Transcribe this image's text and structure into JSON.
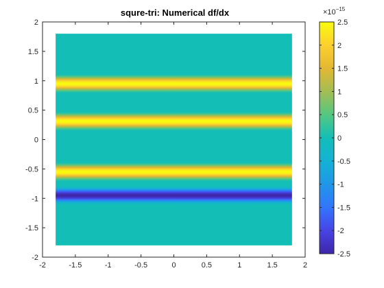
{
  "chart_data": {
    "type": "heatmap",
    "title": "squre-tri: Numerical df/dx",
    "xlabel": "",
    "ylabel": "",
    "xlim": [
      -2,
      2
    ],
    "ylim": [
      -2,
      2
    ],
    "x_ticks": [
      "-2",
      "-1.5",
      "-1",
      "-0.5",
      "0",
      "0.5",
      "1",
      "1.5",
      "2"
    ],
    "y_ticks": [
      "2",
      "1.5",
      "1",
      "0.5",
      "0",
      "-0.5",
      "-1",
      "-1.5",
      "-2"
    ],
    "data_extent": {
      "x": [
        -1.8,
        1.8
      ],
      "y": [
        -1.8,
        1.8
      ]
    },
    "background_value": 0,
    "bands": [
      {
        "y_center": 0.95,
        "halfwidth": 0.17,
        "peak": 2.5e-15
      },
      {
        "y_center": 0.31,
        "halfwidth": 0.17,
        "peak": 2.5e-15
      },
      {
        "y_center": -0.55,
        "halfwidth": 0.17,
        "peak": 2.5e-15
      },
      {
        "y_center": -0.95,
        "halfwidth": 0.17,
        "peak": -2.5e-15
      }
    ],
    "colorbar": {
      "clim": [
        -2.5e-15,
        2.5e-15
      ],
      "ticks": [
        "2.5",
        "2",
        "1.5",
        "1",
        "0.5",
        "0",
        "-0.5",
        "-1",
        "-1.5",
        "-2",
        "-2.5"
      ],
      "exponent_label": "×10",
      "exponent_power": "−15",
      "colormap": "parula"
    },
    "colors": {
      "axis": "#262626",
      "axes_background": "#ffffff",
      "zero_level": "#13BEB7"
    }
  }
}
